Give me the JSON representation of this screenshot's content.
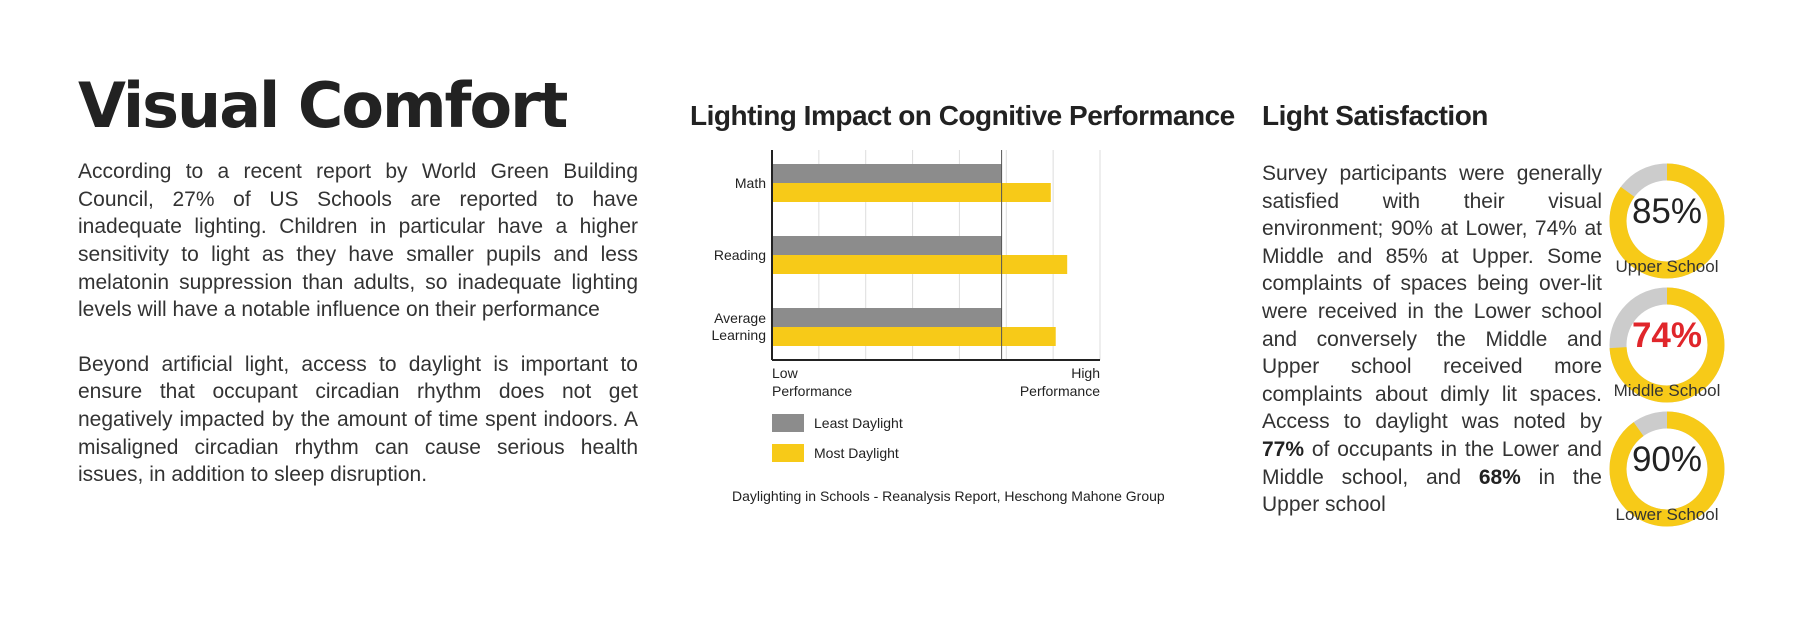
{
  "left": {
    "title": "Visual Comfort",
    "paragraph1": "According to a recent report by World Green Building Council, 27% of US Schools are reported to have inadequate lighting. Children in particular have a higher sensitivity to light as they have smaller pupils and less melatonin suppression than adults, so inadequate lighting levels will have a notable influence on their performance",
    "paragraph2": "Beyond artificial light, access to daylight is important to ensure that occupant circadian rhythm does not get negatively impacted by the amount of time spent indoors. A misaligned circadian rhythm can cause serious health issues, in addition to sleep disruption."
  },
  "chart_data": {
    "type": "bar",
    "orientation": "horizontal",
    "title": "Lighting Impact on Cognitive Performance",
    "categories": [
      "Math",
      "Reading",
      "Average Learning"
    ],
    "series": [
      {
        "name": "Least Daylight",
        "values": [
          70,
          70,
          70
        ],
        "color": "#8c8c8c"
      },
      {
        "name": "Most Daylight",
        "values": [
          85,
          90,
          86.5
        ],
        "color": "#f7ca18"
      }
    ],
    "xlim": [
      0,
      100
    ],
    "x_tick_low": "Low Performance",
    "x_tick_high": "High Performance",
    "grid": true,
    "legend_position": "bottom-left",
    "source": "Daylighting in Schools - Reanalysis Report, Heschong Mahone Group"
  },
  "satisfaction": {
    "title": "Light Satisfaction",
    "text_part1": "Survey participants were generally satisfied with their visual environment; 90% at Lower, 74% at Middle and 85% at Upper. Some complaints of spaces being over-lit were received in the Lower school and conversely the Middle and Upper school received more complaints about dimly lit spaces. Access to daylight was noted by ",
    "bold1": "77%",
    "text_part2": " of occupants in the Lower and Middle school,  and ",
    "bold2": "68%",
    "text_part3": " in the Upper school",
    "donuts": [
      {
        "label": "Upper School",
        "value_text": "85%",
        "percent": 85
      },
      {
        "label": "Middle School",
        "value_text": "74%",
        "percent": 74
      },
      {
        "label": "Lower School",
        "value_text": "90%",
        "percent": 90
      }
    ],
    "colors": {
      "fill": "#f7ca18",
      "track": "#cccccc",
      "highlight": "#e0262b"
    }
  }
}
